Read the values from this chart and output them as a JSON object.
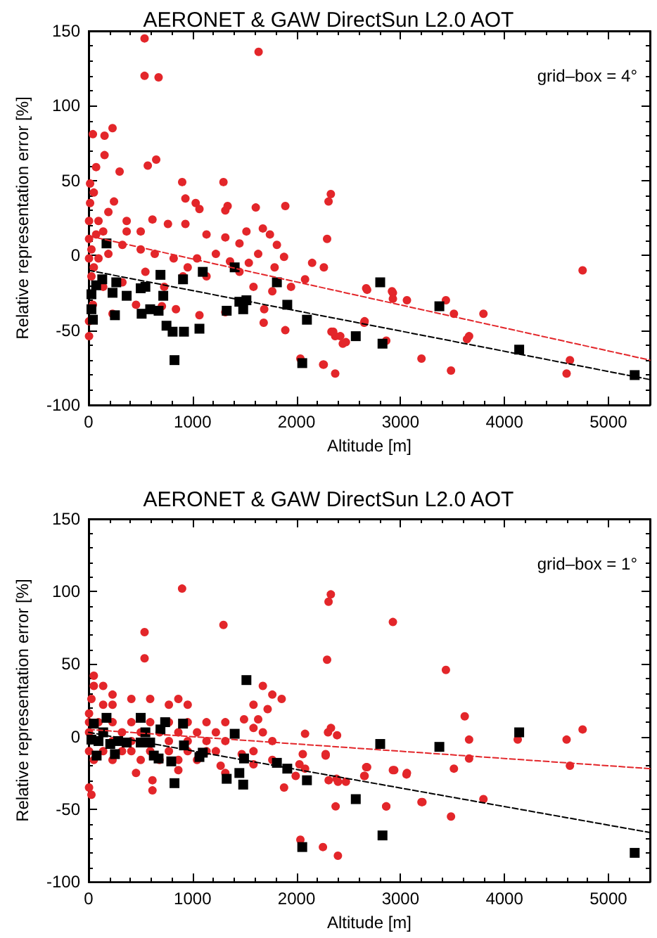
{
  "chart_data": [
    {
      "type": "scatter",
      "title": "AERONET & GAW DirectSun L2.0 AOT",
      "xlabel": "Altitude [m]",
      "ylabel": "Relative representation error [%]",
      "annotations": [
        "grid–box = 4°"
      ],
      "xlim": [
        0,
        5400
      ],
      "ylim": [
        -100,
        150
      ],
      "xticks": [
        0,
        1000,
        2000,
        3000,
        4000,
        5000
      ],
      "yticks": [
        -100,
        -50,
        0,
        50,
        100,
        150
      ],
      "grid": false,
      "series": [
        {
          "type": "scatter",
          "marker": "circle",
          "color": "#e3262a",
          "x": [
            538,
            1635,
            538,
            673,
            41,
            153,
            230,
            153,
            72,
            650,
            569,
            298,
            900,
            1297,
            931,
            1030,
            1066,
            1315,
            1337,
            1608,
            1892,
            2330,
            2308,
            2294,
            244,
            4752,
            2679,
            2927,
            2927,
            3062,
            3437,
            3514,
            3798,
            2651,
            2336,
            2372,
            2445,
            3640,
            3660,
            2863,
            3202,
            3486,
            2372,
            2256,
            4630,
            4598,
            2037,
            2262,
            2353,
            2421,
            2475,
            2655,
            2670,
            2918,
            1066,
            1684,
            1892,
            1689,
            1315,
            705,
            840,
            456,
            230,
            4,
            4,
            41,
            366,
            614,
            763,
            366,
            501,
            140,
            931,
            1134,
            1315,
            1518,
            1676,
            1744,
            1451,
            1811,
            1880,
            1631,
            1541,
            1789,
            2150,
            2263,
            2082,
            1947,
            1767,
            1586,
            1134,
            953,
            818,
            636,
            501,
            325,
            190,
            95,
            50,
            27,
            140,
            325,
            546,
            727,
            908,
            1043,
            1224,
            1360,
            1451,
            14,
            14,
            50,
            4,
            4,
            4,
            72,
            95,
            27,
            190
          ],
          "values": [
            145,
            136,
            120,
            119,
            81,
            80,
            85,
            67,
            59,
            64,
            60,
            56,
            49,
            49,
            38,
            35,
            31,
            30,
            33,
            32,
            33,
            41,
            36,
            11,
            36,
            -10,
            -23,
            -25,
            -29,
            -30,
            -30,
            -39,
            -39,
            -45,
            -51,
            -54,
            -59,
            -56,
            -54,
            -57,
            -69,
            -77,
            -79,
            -73,
            -70,
            -79,
            -69,
            -73,
            -51,
            -54,
            -58,
            -44,
            -22,
            -24,
            -40,
            -45,
            -50,
            -36,
            -38,
            -34,
            -36,
            -33,
            -39,
            -44,
            -54,
            -33,
            23,
            24,
            21,
            16,
            16,
            16,
            21,
            14,
            12,
            16,
            18,
            14,
            8,
            7,
            -1,
            1,
            -5,
            -8,
            -5,
            -8,
            -16,
            -21,
            -24,
            -21,
            -14,
            -8,
            -2,
            1,
            4,
            7,
            1,
            -2,
            -8,
            -14,
            -21,
            -18,
            -11,
            -21,
            -14,
            -2,
            1,
            -4,
            -11,
            35,
            48,
            42,
            23,
            11,
            -2,
            14,
            23,
            4,
            29
          ]
        },
        {
          "type": "scatter",
          "marker": "square",
          "color": "#000000",
          "x": [
            172,
            72,
            131,
            266,
            27,
            27,
            41,
            230,
            366,
            253,
            501,
            546,
            510,
            592,
            673,
            691,
            718,
            908,
            1098,
            749,
            808,
            917,
            1066,
            826,
            1328,
            1450,
            1487,
            1518,
            1405,
            1811,
            1911,
            2100,
            2055,
            2570,
            2805,
            2827,
            3374,
            4142,
            5253
          ],
          "values": [
            8,
            -20,
            -16,
            -18,
            -26,
            -36,
            -43,
            -25,
            -27,
            -40,
            -22,
            -21,
            -39,
            -36,
            -37,
            -13,
            -27,
            -16,
            -11,
            -47,
            -51,
            -51,
            -49,
            -70,
            -37,
            -31,
            -36,
            -30,
            -8,
            -18,
            -33,
            -43,
            -72,
            -54,
            -18,
            -59,
            -34,
            -63,
            -80
          ]
        },
        {
          "type": "line",
          "marker": "none",
          "line_style": "dashed",
          "color": "#e3262a",
          "x": [
            0,
            5400
          ],
          "values": [
            13,
            -70
          ]
        },
        {
          "type": "line",
          "marker": "none",
          "line_style": "dashed",
          "color": "#000000",
          "x": [
            0,
            5400
          ],
          "values": [
            -10,
            -83
          ]
        }
      ]
    },
    {
      "type": "scatter",
      "title": "AERONET & GAW DirectSun L2.0 AOT",
      "xlabel": "Altitude [m]",
      "ylabel": "Relative representation error [%]",
      "annotations": [
        "grid–box = 1°"
      ],
      "xlim": [
        0,
        5400
      ],
      "ylim": [
        -100,
        150
      ],
      "xticks": [
        0,
        1000,
        2000,
        3000,
        4000,
        5000
      ],
      "yticks": [
        -100,
        -50,
        0,
        50,
        100,
        150
      ],
      "grid": false,
      "series": [
        {
          "type": "scatter",
          "marker": "circle",
          "color": "#e3262a",
          "x": [
            899,
            1297,
            2330,
            2308,
            2294,
            2927,
            538,
            538,
            50,
            50,
            140,
            230,
            27,
            4,
            140,
            230,
            411,
            592,
            772,
            863,
            953,
            4,
            230,
            321,
            411,
            501,
            682,
            772,
            863,
            953,
            1043,
            1134,
            1224,
            1315,
            4,
            50,
            140,
            230,
            321,
            411,
            501,
            592,
            682,
            772,
            863,
            953,
            1043,
            1134,
            1224,
            4,
            95,
            230,
            411,
            592,
            772,
            953,
            1134,
            1315,
            1676,
            1722,
            1767,
            1857,
            1586,
            1495,
            1586,
            1631,
            1676,
            1767,
            1586,
            1767,
            1880,
            2082,
            2280,
            2060,
            2028,
            1992,
            2082,
            2385,
            2475,
            2670,
            2655,
            2940,
            3058,
            2376,
            2863,
            3211,
            2037,
            2254,
            2398,
            4,
            27,
            614,
            614,
            456,
            863,
            1270,
            1315,
            1473,
            1586,
            3437,
            3618,
            3660,
            3660,
            3514,
            4128,
            4598,
            4752,
            4630,
            3798,
            3202,
            3486,
            2863,
            2927,
            3062,
            2679,
            2651,
            2309,
            2399,
            2303,
            2331,
            2390,
            2280
          ],
          "values": [
            102,
            77,
            98,
            93,
            53,
            79,
            72,
            54,
            42,
            35,
            35,
            29,
            26,
            16,
            22,
            22,
            26,
            26,
            22,
            26,
            22,
            3,
            -3,
            3,
            -3,
            3,
            3,
            -3,
            3,
            -3,
            3,
            -3,
            3,
            -3,
            -10,
            -16,
            -10,
            -16,
            -10,
            -10,
            -16,
            -10,
            -16,
            -10,
            -16,
            -10,
            -16,
            -10,
            -10,
            10,
            10,
            10,
            10,
            10,
            10,
            10,
            10,
            10,
            35,
            19,
            29,
            26,
            22,
            12,
            6,
            12,
            3,
            -3,
            -10,
            -16,
            -35,
            2,
            -13,
            -12,
            -19,
            -27,
            -22,
            -29,
            -31,
            -21,
            -27,
            -23,
            -26,
            -48,
            -48,
            -45,
            -71,
            -76,
            -82,
            -35,
            -40,
            -30,
            -37,
            -25,
            -23,
            -20,
            -25,
            -12,
            -19,
            46,
            14,
            -2,
            -15,
            -22,
            -2,
            -2,
            5,
            -20,
            -43,
            -45,
            -55,
            -48,
            -23,
            -25,
            -21,
            -27,
            -30,
            -31,
            3,
            6,
            1,
            -12
          ]
        },
        {
          "type": "scatter",
          "marker": "square",
          "color": "#000000",
          "x": [
            50,
            172,
            77,
            140,
            27,
            95,
            208,
            253,
            284,
            366,
            501,
            546,
            501,
            592,
            627,
            673,
            691,
            736,
            795,
            826,
            908,
            917,
            1066,
            1098,
            1328,
            1405,
            1450,
            1487,
            1518,
            1495,
            1811,
            1911,
            2100,
            2055,
            2570,
            2805,
            2827,
            3374,
            4142,
            5253
          ],
          "values": [
            9,
            13,
            -13,
            3,
            -2,
            -3,
            -5,
            -12,
            -3,
            -4,
            13,
            3,
            -4,
            -4,
            -13,
            -15,
            5,
            10,
            -17,
            -32,
            9,
            -6,
            -14,
            -11,
            -29,
            2,
            -25,
            -33,
            39,
            -15,
            -18,
            -22,
            -30,
            -76,
            -43,
            -5,
            -68,
            -7,
            3,
            -80
          ]
        },
        {
          "type": "line",
          "marker": "none",
          "line_style": "dashed",
          "color": "#e3262a",
          "x": [
            0,
            5400
          ],
          "values": [
            5,
            -22
          ]
        },
        {
          "type": "line",
          "marker": "none",
          "line_style": "dashed",
          "color": "#000000",
          "x": [
            0,
            5400
          ],
          "values": [
            3,
            -66
          ]
        }
      ]
    }
  ]
}
